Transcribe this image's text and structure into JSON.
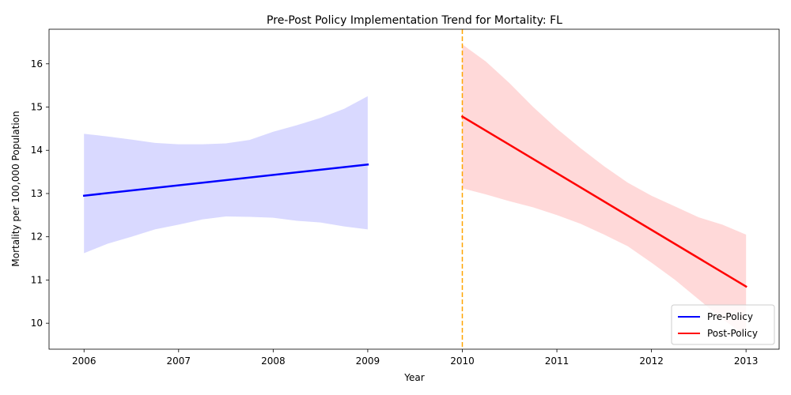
{
  "chart_data": {
    "type": "line",
    "title": "Pre-Post Policy Implementation Trend for Mortality: FL",
    "xlabel": "Year",
    "ylabel": "Mortality per 100,000 Population",
    "xlim": [
      2005.63,
      2013.35
    ],
    "ylim": [
      9.4,
      16.8
    ],
    "xticks": [
      2006,
      2007,
      2008,
      2009,
      2010,
      2011,
      2012,
      2013
    ],
    "yticks": [
      10,
      11,
      12,
      13,
      14,
      15,
      16
    ],
    "policy_year": 2010,
    "policy_line_color": "#ffa500",
    "legend_position": "lower right",
    "grid": false,
    "series": [
      {
        "name": "Pre-Policy",
        "color": "#0000ff",
        "band_color": "#0000ff",
        "x": [
          2006,
          2009
        ],
        "y": [
          12.95,
          13.67
        ],
        "band": {
          "x": [
            2006,
            2006.25,
            2006.5,
            2006.75,
            2007,
            2007.25,
            2007.5,
            2007.75,
            2008,
            2008.25,
            2008.5,
            2008.75,
            2009
          ],
          "upper": [
            14.38,
            14.32,
            14.25,
            14.17,
            14.14,
            14.14,
            14.16,
            14.24,
            14.43,
            14.58,
            14.75,
            14.96,
            15.25
          ],
          "lower": [
            11.62,
            11.84,
            12.0,
            12.17,
            12.28,
            12.4,
            12.47,
            12.46,
            12.44,
            12.37,
            12.33,
            12.24,
            12.17
          ]
        }
      },
      {
        "name": "Post-Policy",
        "color": "#ff0000",
        "band_color": "#ff0000",
        "x": [
          2010,
          2013
        ],
        "y": [
          14.78,
          10.85
        ],
        "band": {
          "x": [
            2010,
            2010.25,
            2010.5,
            2010.75,
            2011,
            2011.25,
            2011.5,
            2011.75,
            2012,
            2012.25,
            2012.5,
            2012.75,
            2013
          ],
          "upper": [
            16.45,
            16.05,
            15.55,
            15.0,
            14.5,
            14.05,
            13.63,
            13.25,
            12.95,
            12.7,
            12.45,
            12.28,
            12.05
          ],
          "lower": [
            13.12,
            12.98,
            12.82,
            12.68,
            12.5,
            12.3,
            12.05,
            11.78,
            11.4,
            11.0,
            10.55,
            10.1,
            9.7
          ]
        }
      }
    ]
  }
}
